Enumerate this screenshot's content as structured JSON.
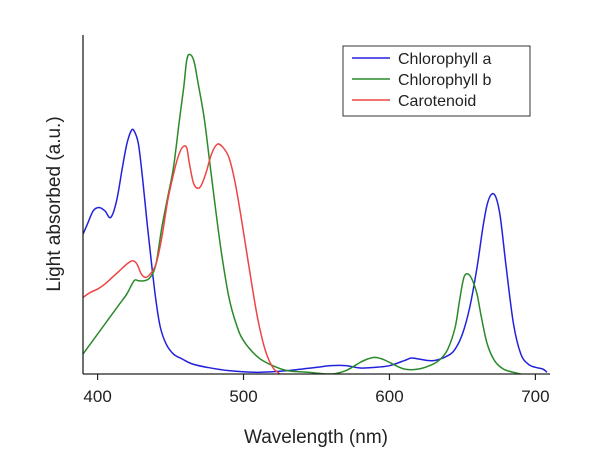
{
  "chart_data": {
    "type": "line",
    "xlabel": "Wavelength (nm)",
    "ylabel": "Light absorbed (a.u.)",
    "xlim": [
      390,
      710
    ],
    "ylim": [
      0,
      1.0
    ],
    "x_ticks": [
      400,
      500,
      600,
      700
    ],
    "grid": false,
    "legend_position": "top-right",
    "series": [
      {
        "name": "Chlorophyll a",
        "color": "#2222dd",
        "x": [
          390,
          393,
          397,
          401,
          405,
          409,
          413,
          417,
          420,
          423,
          425,
          428,
          431,
          434,
          437,
          440,
          443,
          447,
          452,
          458,
          465,
          475,
          490,
          510,
          530,
          550,
          560,
          570,
          580,
          590,
          600,
          610,
          615,
          620,
          630,
          640,
          645,
          650,
          655,
          660,
          664,
          667,
          670,
          673,
          676,
          680,
          685,
          690,
          695,
          700,
          705,
          708
        ],
        "y": [
          0.42,
          0.45,
          0.49,
          0.5,
          0.49,
          0.47,
          0.52,
          0.62,
          0.69,
          0.73,
          0.73,
          0.69,
          0.58,
          0.45,
          0.33,
          0.22,
          0.14,
          0.09,
          0.06,
          0.045,
          0.03,
          0.02,
          0.01,
          0.005,
          0.01,
          0.02,
          0.025,
          0.025,
          0.018,
          0.02,
          0.025,
          0.04,
          0.048,
          0.045,
          0.04,
          0.055,
          0.075,
          0.12,
          0.2,
          0.32,
          0.44,
          0.51,
          0.54,
          0.53,
          0.47,
          0.32,
          0.15,
          0.06,
          0.03,
          0.02,
          0.015,
          0.005
        ]
      },
      {
        "name": "Chlorophyll b",
        "color": "#2a8a2a",
        "x": [
          390,
          395,
          400,
          405,
          410,
          415,
          420,
          425,
          428,
          432,
          436,
          440,
          444,
          448,
          452,
          456,
          459,
          461,
          463,
          466,
          469,
          473,
          477,
          481,
          485,
          490,
          495,
          500,
          510,
          520,
          530,
          545,
          560,
          570,
          580,
          585,
          590,
          595,
          600,
          610,
          620,
          630,
          635,
          640,
          645,
          648,
          651,
          654,
          657,
          660,
          663,
          667,
          672,
          678,
          685,
          690
        ],
        "y": [
          0.06,
          0.09,
          0.12,
          0.15,
          0.18,
          0.21,
          0.24,
          0.28,
          0.28,
          0.28,
          0.29,
          0.33,
          0.44,
          0.53,
          0.62,
          0.76,
          0.86,
          0.94,
          0.96,
          0.94,
          0.87,
          0.77,
          0.63,
          0.49,
          0.36,
          0.23,
          0.15,
          0.1,
          0.05,
          0.025,
          0.01,
          0.005,
          0.0,
          0.01,
          0.035,
          0.045,
          0.05,
          0.045,
          0.035,
          0.015,
          0.015,
          0.03,
          0.045,
          0.075,
          0.14,
          0.22,
          0.29,
          0.3,
          0.28,
          0.24,
          0.17,
          0.09,
          0.04,
          0.015,
          0.005,
          0.0
        ]
      },
      {
        "name": "Carotenoid",
        "color": "#ee4444",
        "x": [
          390,
          395,
          400,
          405,
          410,
          415,
          420,
          424,
          427,
          430,
          433,
          436,
          440,
          444,
          448,
          452,
          455,
          458,
          461,
          463,
          466,
          470,
          474,
          478,
          482,
          486,
          490,
          494,
          498,
          502,
          506,
          510,
          515,
          520,
          525
        ],
        "y": [
          0.23,
          0.245,
          0.255,
          0.27,
          0.29,
          0.31,
          0.33,
          0.34,
          0.33,
          0.3,
          0.29,
          0.3,
          0.33,
          0.41,
          0.52,
          0.6,
          0.65,
          0.68,
          0.68,
          0.63,
          0.57,
          0.56,
          0.6,
          0.66,
          0.69,
          0.68,
          0.65,
          0.58,
          0.48,
          0.37,
          0.26,
          0.16,
          0.07,
          0.02,
          0.0
        ]
      }
    ]
  }
}
